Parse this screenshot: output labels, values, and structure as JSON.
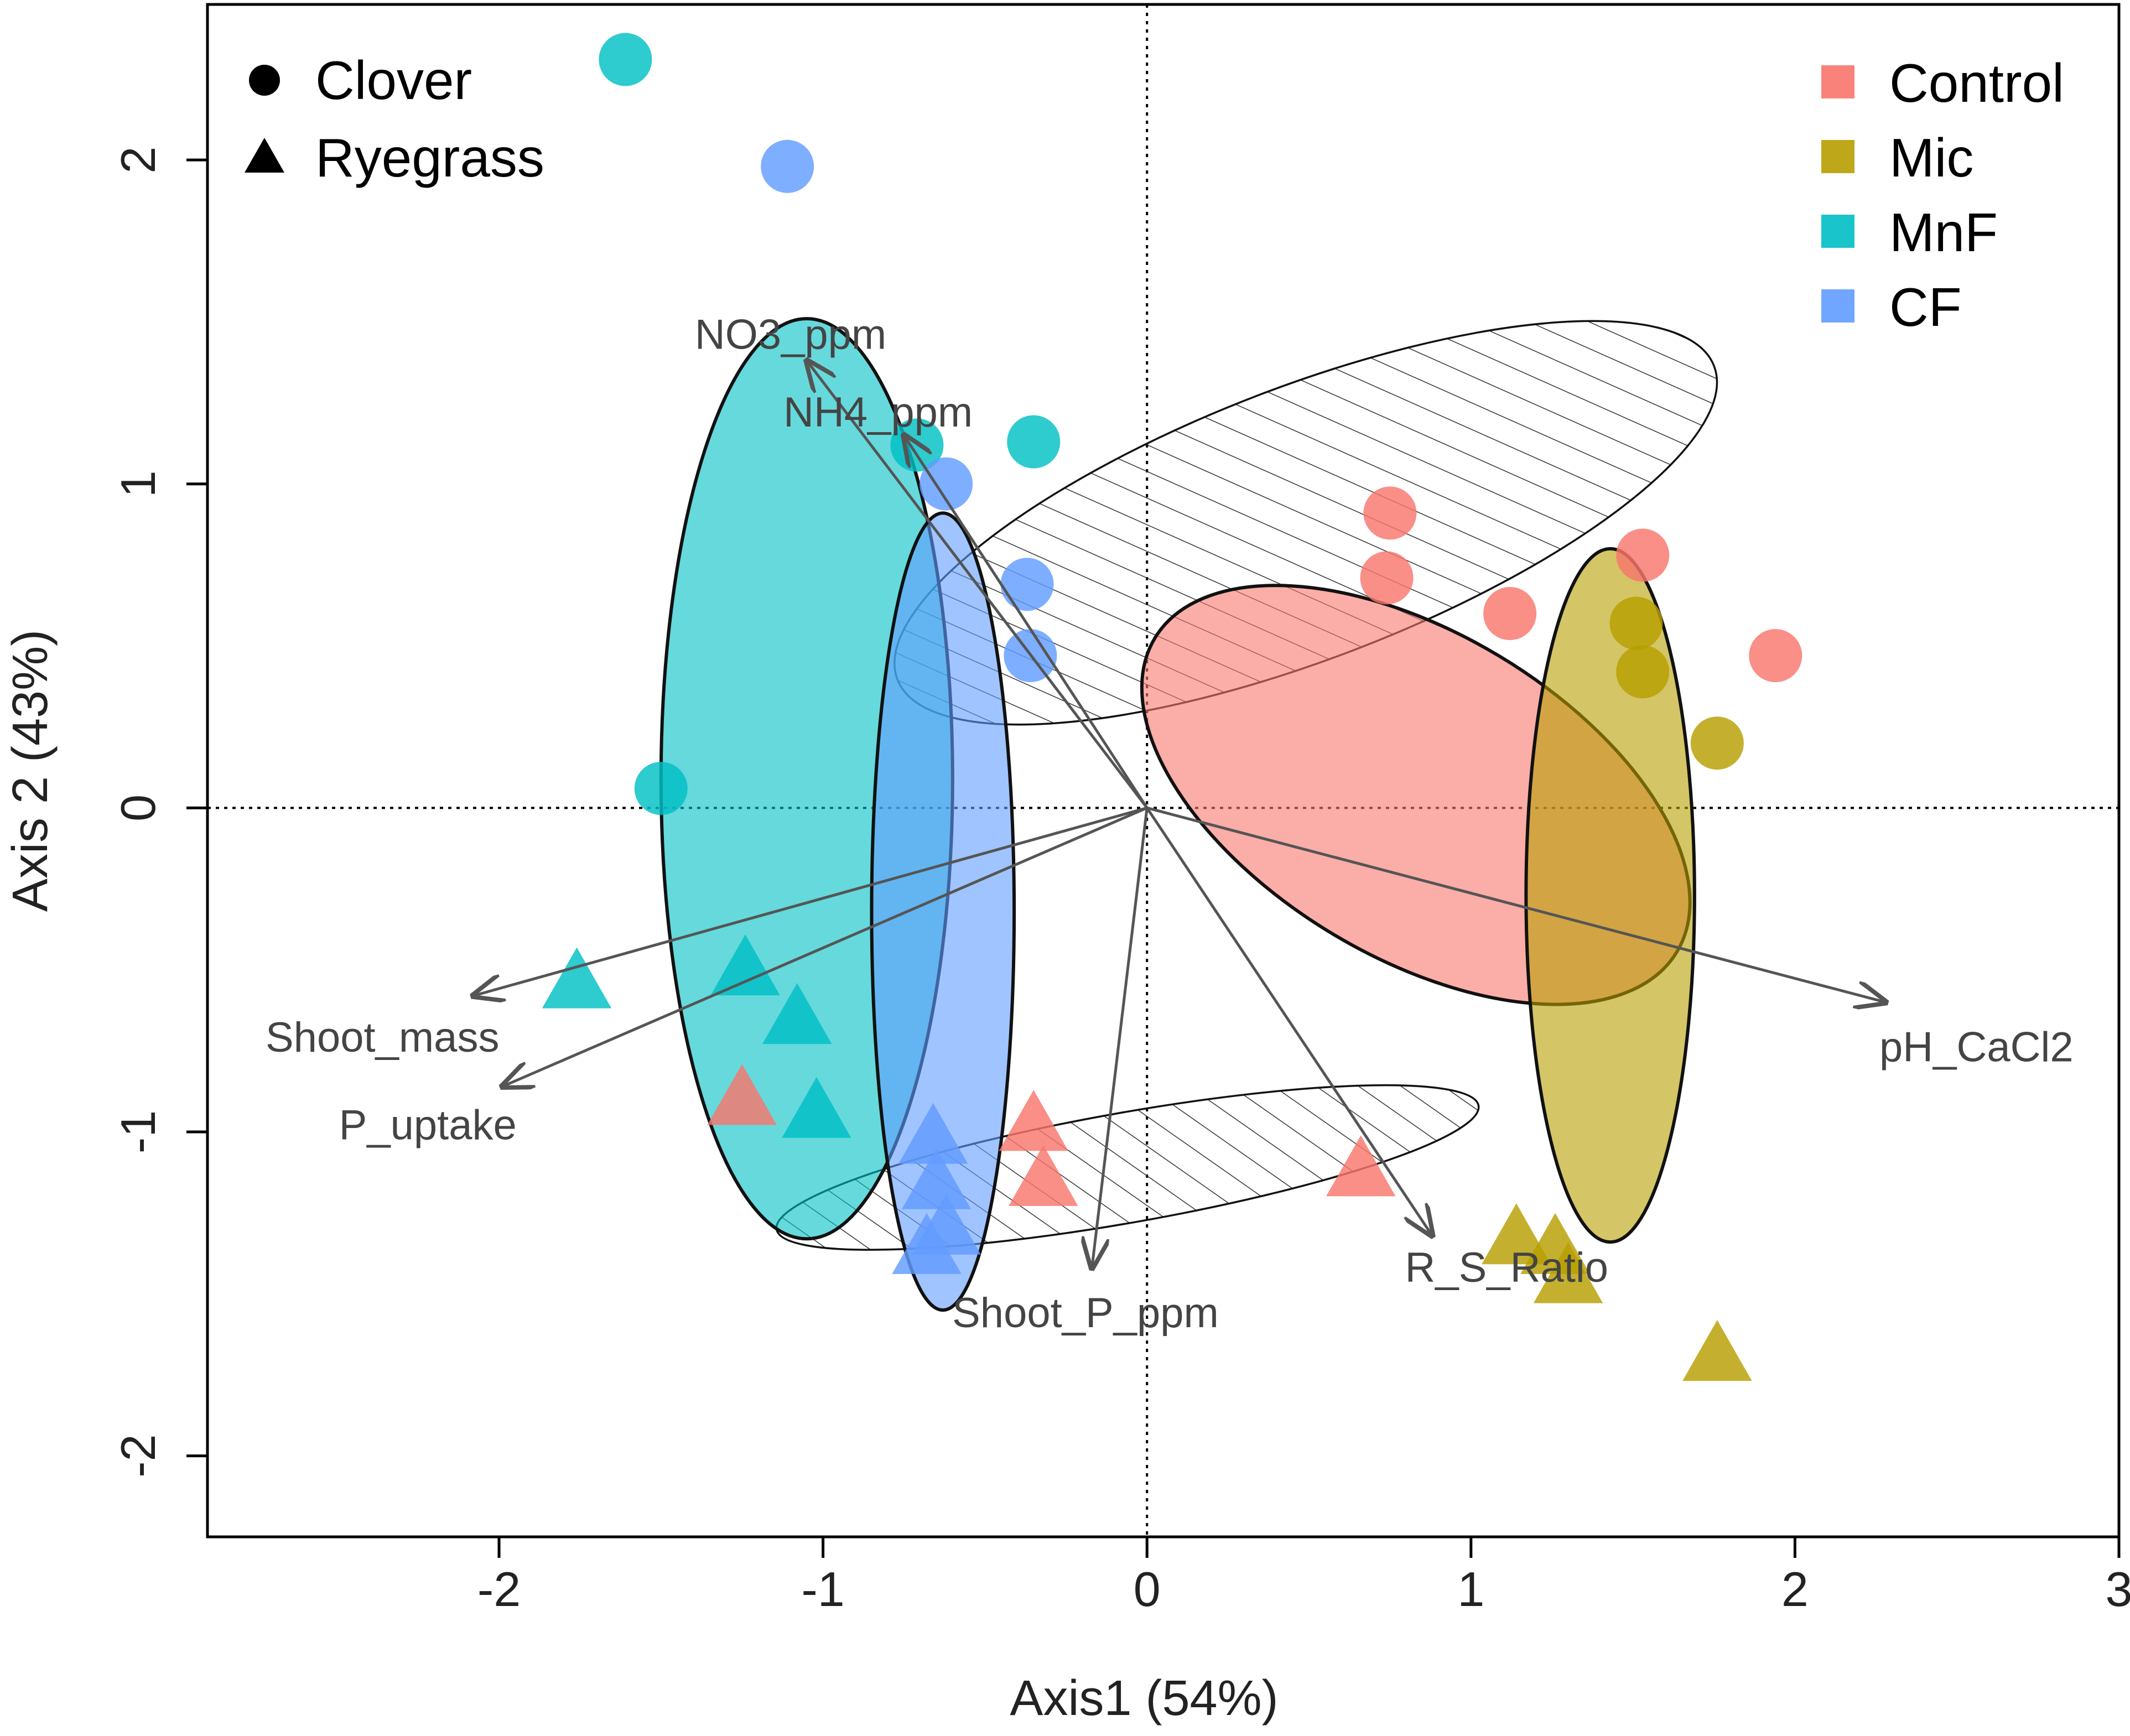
{
  "chart_data": {
    "type": "scatter",
    "title": "",
    "xlabel": "Axis1 (54%)",
    "ylabel": "Axis 2 (43%)",
    "xlim": [
      -2.9,
      3.0
    ],
    "ylim": [
      -2.25,
      2.48
    ],
    "xticks": [
      -2,
      -1,
      0,
      1,
      2,
      3
    ],
    "yticks": [
      -2,
      -1,
      0,
      1,
      2
    ],
    "xtick_labels": [
      "-2",
      "-1",
      "0",
      "1",
      "2",
      "3"
    ],
    "ytick_labels": [
      "-2",
      "-1",
      "0",
      "1",
      "2"
    ],
    "reference_lines": {
      "x": 0,
      "y": 0,
      "style": "dotted"
    },
    "colors": {
      "Control": "#F8766D",
      "Mic": "#B79F00",
      "MnF": "#00BFC4",
      "CF": "#619CFF",
      "axis": "#000000",
      "vector": "#555555"
    },
    "shape_legend": {
      "placement": "top-left",
      "entries": [
        {
          "label": "Clover",
          "shape": "circle"
        },
        {
          "label": "Ryegrass",
          "shape": "triangle"
        }
      ]
    },
    "color_legend": {
      "placement": "top-right",
      "entries": [
        {
          "label": "Control",
          "color": "#F8766D"
        },
        {
          "label": "Mic",
          "color": "#B79F00"
        },
        {
          "label": "MnF",
          "color": "#00BFC4"
        },
        {
          "label": "CF",
          "color": "#619CFF"
        }
      ]
    },
    "ellipses": [
      {
        "group": "Clover-hatched",
        "cx": 0.49,
        "cy": 0.88,
        "rx": 1.35,
        "ry": 0.42,
        "angle": -21,
        "fill": "hatch"
      },
      {
        "group": "Ryegrass-hatched",
        "cx": -0.06,
        "cy": -1.11,
        "rx": 1.1,
        "ry": 0.17,
        "angle": -10,
        "fill": "hatch"
      },
      {
        "group": "MnF",
        "cx": -1.05,
        "cy": 0.09,
        "rx": 0.45,
        "ry": 1.42,
        "angle": 0,
        "fill": "#00BFC4"
      },
      {
        "group": "CF",
        "cx": -0.63,
        "cy": -0.32,
        "rx": 0.22,
        "ry": 1.23,
        "angle": 0,
        "fill": "#619CFF"
      },
      {
        "group": "Control",
        "cx": 0.83,
        "cy": 0.04,
        "rx": 0.94,
        "ry": 0.5,
        "angle": 31,
        "fill": "#F8766D"
      },
      {
        "group": "Mic",
        "cx": 1.43,
        "cy": -0.27,
        "rx": 0.26,
        "ry": 1.07,
        "angle": 0,
        "fill": "#B79F00"
      }
    ],
    "points": [
      {
        "group": "Control",
        "shape": "circle",
        "x": 0.75,
        "y": 0.91
      },
      {
        "group": "Control",
        "shape": "circle",
        "x": 0.74,
        "y": 0.71
      },
      {
        "group": "Control",
        "shape": "circle",
        "x": 1.12,
        "y": 0.6
      },
      {
        "group": "Control",
        "shape": "circle",
        "x": 1.53,
        "y": 0.78
      },
      {
        "group": "Control",
        "shape": "circle",
        "x": 1.94,
        "y": 0.47
      },
      {
        "group": "Control",
        "shape": "triangle",
        "x": -0.35,
        "y": -0.98
      },
      {
        "group": "Control",
        "shape": "triangle",
        "x": -0.32,
        "y": -1.15
      },
      {
        "group": "Control",
        "shape": "triangle",
        "x": 0.66,
        "y": -1.12
      },
      {
        "group": "Control",
        "shape": "triangle",
        "x": -1.25,
        "y": -0.9
      },
      {
        "group": "Mic",
        "shape": "circle",
        "x": 1.51,
        "y": 0.57
      },
      {
        "group": "Mic",
        "shape": "circle",
        "x": 1.53,
        "y": 0.42
      },
      {
        "group": "Mic",
        "shape": "circle",
        "x": 1.76,
        "y": 0.2
      },
      {
        "group": "Mic",
        "shape": "triangle",
        "x": 1.14,
        "y": -1.33
      },
      {
        "group": "Mic",
        "shape": "triangle",
        "x": 1.26,
        "y": -1.36
      },
      {
        "group": "Mic",
        "shape": "triangle",
        "x": 1.3,
        "y": -1.45
      },
      {
        "group": "Mic",
        "shape": "triangle",
        "x": 1.76,
        "y": -1.69
      },
      {
        "group": "MnF",
        "shape": "circle",
        "x": -1.61,
        "y": 2.31
      },
      {
        "group": "MnF",
        "shape": "circle",
        "x": -0.35,
        "y": 1.13
      },
      {
        "group": "MnF",
        "shape": "circle",
        "x": -0.71,
        "y": 1.12
      },
      {
        "group": "MnF",
        "shape": "circle",
        "x": -1.5,
        "y": 0.06
      },
      {
        "group": "MnF",
        "shape": "triangle",
        "x": -1.76,
        "y": -0.54
      },
      {
        "group": "MnF",
        "shape": "triangle",
        "x": -1.24,
        "y": -0.5
      },
      {
        "group": "MnF",
        "shape": "triangle",
        "x": -1.08,
        "y": -0.65
      },
      {
        "group": "MnF",
        "shape": "triangle",
        "x": -1.02,
        "y": -0.94
      },
      {
        "group": "CF",
        "shape": "circle",
        "x": -1.11,
        "y": 1.98
      },
      {
        "group": "CF",
        "shape": "circle",
        "x": -0.62,
        "y": 1.0
      },
      {
        "group": "CF",
        "shape": "circle",
        "x": -0.37,
        "y": 0.69
      },
      {
        "group": "CF",
        "shape": "circle",
        "x": -0.36,
        "y": 0.47
      },
      {
        "group": "CF",
        "shape": "triangle",
        "x": -0.66,
        "y": -1.02
      },
      {
        "group": "CF",
        "shape": "triangle",
        "x": -0.65,
        "y": -1.16
      },
      {
        "group": "CF",
        "shape": "triangle",
        "x": -0.62,
        "y": -1.3
      },
      {
        "group": "CF",
        "shape": "triangle",
        "x": -0.68,
        "y": -1.36
      }
    ],
    "vectors": [
      {
        "label": "NO3_ppm",
        "x": -1.05,
        "y": 1.38,
        "label_x": -1.1,
        "label_y": 1.46,
        "anchor": "middle"
      },
      {
        "label": "NH4_ppm",
        "x": -0.75,
        "y": 1.15,
        "label_x": -0.83,
        "label_y": 1.22,
        "anchor": "middle"
      },
      {
        "label": "Shoot_mass",
        "x": -2.08,
        "y": -0.58,
        "label_x": -2.36,
        "label_y": -0.71,
        "anchor": "middle"
      },
      {
        "label": "P_uptake",
        "x": -1.99,
        "y": -0.86,
        "label_x": -2.22,
        "label_y": -0.98,
        "anchor": "middle"
      },
      {
        "label": "Shoot_P_ppm",
        "x": -0.17,
        "y": -1.42,
        "label_x": -0.19,
        "label_y": -1.56,
        "anchor": "middle"
      },
      {
        "label": "R_S_Ratio",
        "x": 0.88,
        "y": -1.32,
        "label_x": 1.11,
        "label_y": -1.42,
        "anchor": "middle"
      },
      {
        "label": "pH_CaCl2",
        "x": 2.28,
        "y": -0.6,
        "label_x": 2.56,
        "label_y": -0.74,
        "anchor": "middle"
      }
    ]
  }
}
